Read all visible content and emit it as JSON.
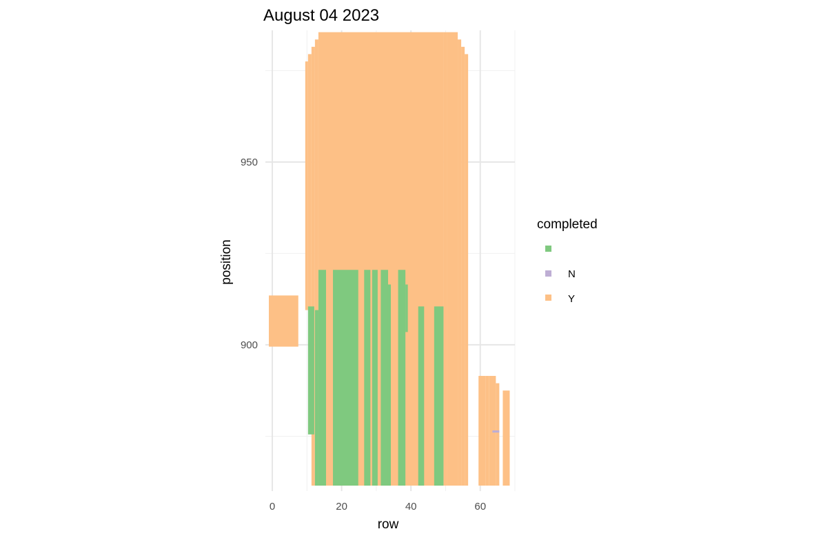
{
  "chart_data": {
    "type": "heatmap",
    "title": "August 04 2023",
    "xlabel": "row",
    "ylabel": "position",
    "xlim": [
      -2,
      70
    ],
    "ylim": [
      860,
      986
    ],
    "x_ticks": [
      0,
      20,
      40,
      60
    ],
    "y_ticks": [
      900,
      950
    ],
    "x_minor": [
      10,
      30,
      50,
      70
    ],
    "y_minor": [
      875,
      925,
      975
    ],
    "grid": true,
    "legend": {
      "title": "completed",
      "position": "right",
      "entries": [
        {
          "label": "",
          "color": "#7fc97f"
        },
        {
          "label": "N",
          "color": "#beaed4"
        },
        {
          "label": "Y",
          "color": "#fdc086"
        }
      ]
    },
    "tiles": [
      {
        "x": [
          -1,
          7.5
        ],
        "y": [
          899.5,
          913.5
        ],
        "completed": "Y"
      },
      {
        "x": [
          9.5,
          10.3
        ],
        "y": [
          909.5,
          977.5
        ],
        "completed": "Y"
      },
      {
        "x": [
          10.3,
          11.3
        ],
        "y": [
          909.5,
          979.5
        ],
        "completed": "Y"
      },
      {
        "x": [
          11.3,
          12.3
        ],
        "y": [
          861.5,
          981.5
        ],
        "completed": "Y"
      },
      {
        "x": [
          12.3,
          13.3
        ],
        "y": [
          861.5,
          983.5
        ],
        "completed": "Y"
      },
      {
        "x": [
          13.3,
          49.5
        ],
        "y": [
          861.5,
          985.5
        ],
        "completed": "Y"
      },
      {
        "x": [
          49.5,
          50.5
        ],
        "y": [
          861.5,
          985.5
        ],
        "completed": "Y"
      },
      {
        "x": [
          50.5,
          53.5
        ],
        "y": [
          861.5,
          985.5
        ],
        "completed": "Y"
      },
      {
        "x": [
          53.5,
          54.5
        ],
        "y": [
          861.5,
          983.5
        ],
        "completed": "Y"
      },
      {
        "x": [
          54.5,
          55.5
        ],
        "y": [
          861.5,
          981.5
        ],
        "completed": "Y"
      },
      {
        "x": [
          55.5,
          56.5
        ],
        "y": [
          861.5,
          979.5
        ],
        "completed": "Y"
      },
      {
        "x": [
          10.3,
          12.1
        ],
        "y": [
          875.5,
          910.5
        ],
        "completed": ""
      },
      {
        "x": [
          12.3,
          13.3
        ],
        "y": [
          861.5,
          909.5
        ],
        "completed": ""
      },
      {
        "x": [
          13.3,
          15.5
        ],
        "y": [
          861.5,
          920.5
        ],
        "completed": ""
      },
      {
        "x": [
          17.5,
          24.8
        ],
        "y": [
          861.5,
          920.5
        ],
        "completed": ""
      },
      {
        "x": [
          26.5,
          28.3
        ],
        "y": [
          861.5,
          920.5
        ],
        "completed": ""
      },
      {
        "x": [
          28.8,
          30.4
        ],
        "y": [
          861.5,
          920.5
        ],
        "completed": ""
      },
      {
        "x": [
          31.3,
          33.4
        ],
        "y": [
          861.5,
          920.5
        ],
        "completed": ""
      },
      {
        "x": [
          33.4,
          34.2
        ],
        "y": [
          861.5,
          916.5
        ],
        "completed": ""
      },
      {
        "x": [
          36.3,
          38.4
        ],
        "y": [
          861.5,
          920.5
        ],
        "completed": ""
      },
      {
        "x": [
          38.4,
          39.1
        ],
        "y": [
          903.5,
          916.5
        ],
        "completed": ""
      },
      {
        "x": [
          42.1,
          43.8
        ],
        "y": [
          861.5,
          910.5
        ],
        "completed": ""
      },
      {
        "x": [
          46.7,
          49.4
        ],
        "y": [
          861.5,
          910.5
        ],
        "completed": ""
      },
      {
        "x": [
          59.5,
          61.5
        ],
        "y": [
          861.5,
          891.5
        ],
        "completed": "Y"
      },
      {
        "x": [
          61.5,
          62.5
        ],
        "y": [
          861.5,
          891.5
        ],
        "completed": "Y"
      },
      {
        "x": [
          62.5,
          64.5
        ],
        "y": [
          861.5,
          891.5
        ],
        "completed": "Y"
      },
      {
        "x": [
          64.5,
          65.5
        ],
        "y": [
          861.5,
          889.5
        ],
        "completed": "Y"
      },
      {
        "x": [
          66.5,
          68.5
        ],
        "y": [
          861.5,
          887.5
        ],
        "completed": "Y"
      },
      {
        "x": [
          63.5,
          65.5
        ],
        "y": [
          876.0,
          876.6
        ],
        "completed": "N"
      }
    ]
  }
}
